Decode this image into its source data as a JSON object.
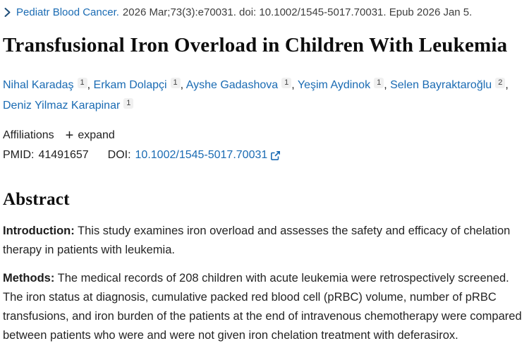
{
  "citation": {
    "chevron_icon": "chevron-right",
    "journal": "Pediatr Blood Cancer.",
    "rest": "2026 Mar;73(3):e70031. doi: 10.1002/1545-5017.70031. Epub 2026 Jan 5."
  },
  "title": "Transfusional Iron Overload in Children With Leukemia",
  "authors": [
    {
      "name": "Nihal Karadaş",
      "affiliation_number": "1"
    },
    {
      "name": "Erkam Dolapçi",
      "affiliation_number": "1"
    },
    {
      "name": "Ayshe Gadashova",
      "affiliation_number": "1"
    },
    {
      "name": "Yeşim Aydinok",
      "affiliation_number": "1"
    },
    {
      "name": "Selen Bayraktaroğlu",
      "affiliation_number": "2"
    },
    {
      "name": "Deniz Yilmaz Karapinar",
      "affiliation_number": "1"
    }
  ],
  "affiliations": {
    "label": "Affiliations",
    "plus_icon": "+",
    "expand_label": "expand"
  },
  "identifiers": {
    "pmid_label": "PMID:",
    "pmid_value": "41491657",
    "doi_label": "DOI:",
    "doi_value": "10.1002/1545-5017.70031",
    "external_link_icon": "external-link"
  },
  "abstract": {
    "heading": "Abstract",
    "sections": [
      {
        "label": "Introduction:",
        "text": "This study examines iron overload and assesses the safety and efficacy of chelation therapy in patients with leukemia."
      },
      {
        "label": "Methods:",
        "text": "The medical records of 208 children with acute leukemia were retrospectively screened. The iron status at diagnosis, cumulative packed red blood cell (pRBC) volume, number of pRBC transfusions, and iron burden of the patients at the end of intravenous chemotherapy were compared between patients who were and were not given iron chelation treatment with deferasirox."
      }
    ]
  },
  "colors": {
    "link_blue": "#1a6bb3",
    "chevron_navy": "#1f4e79",
    "text_dark": "#212121",
    "badge_bg": "#f0f0f0",
    "title_black": "#0d0d0d"
  }
}
